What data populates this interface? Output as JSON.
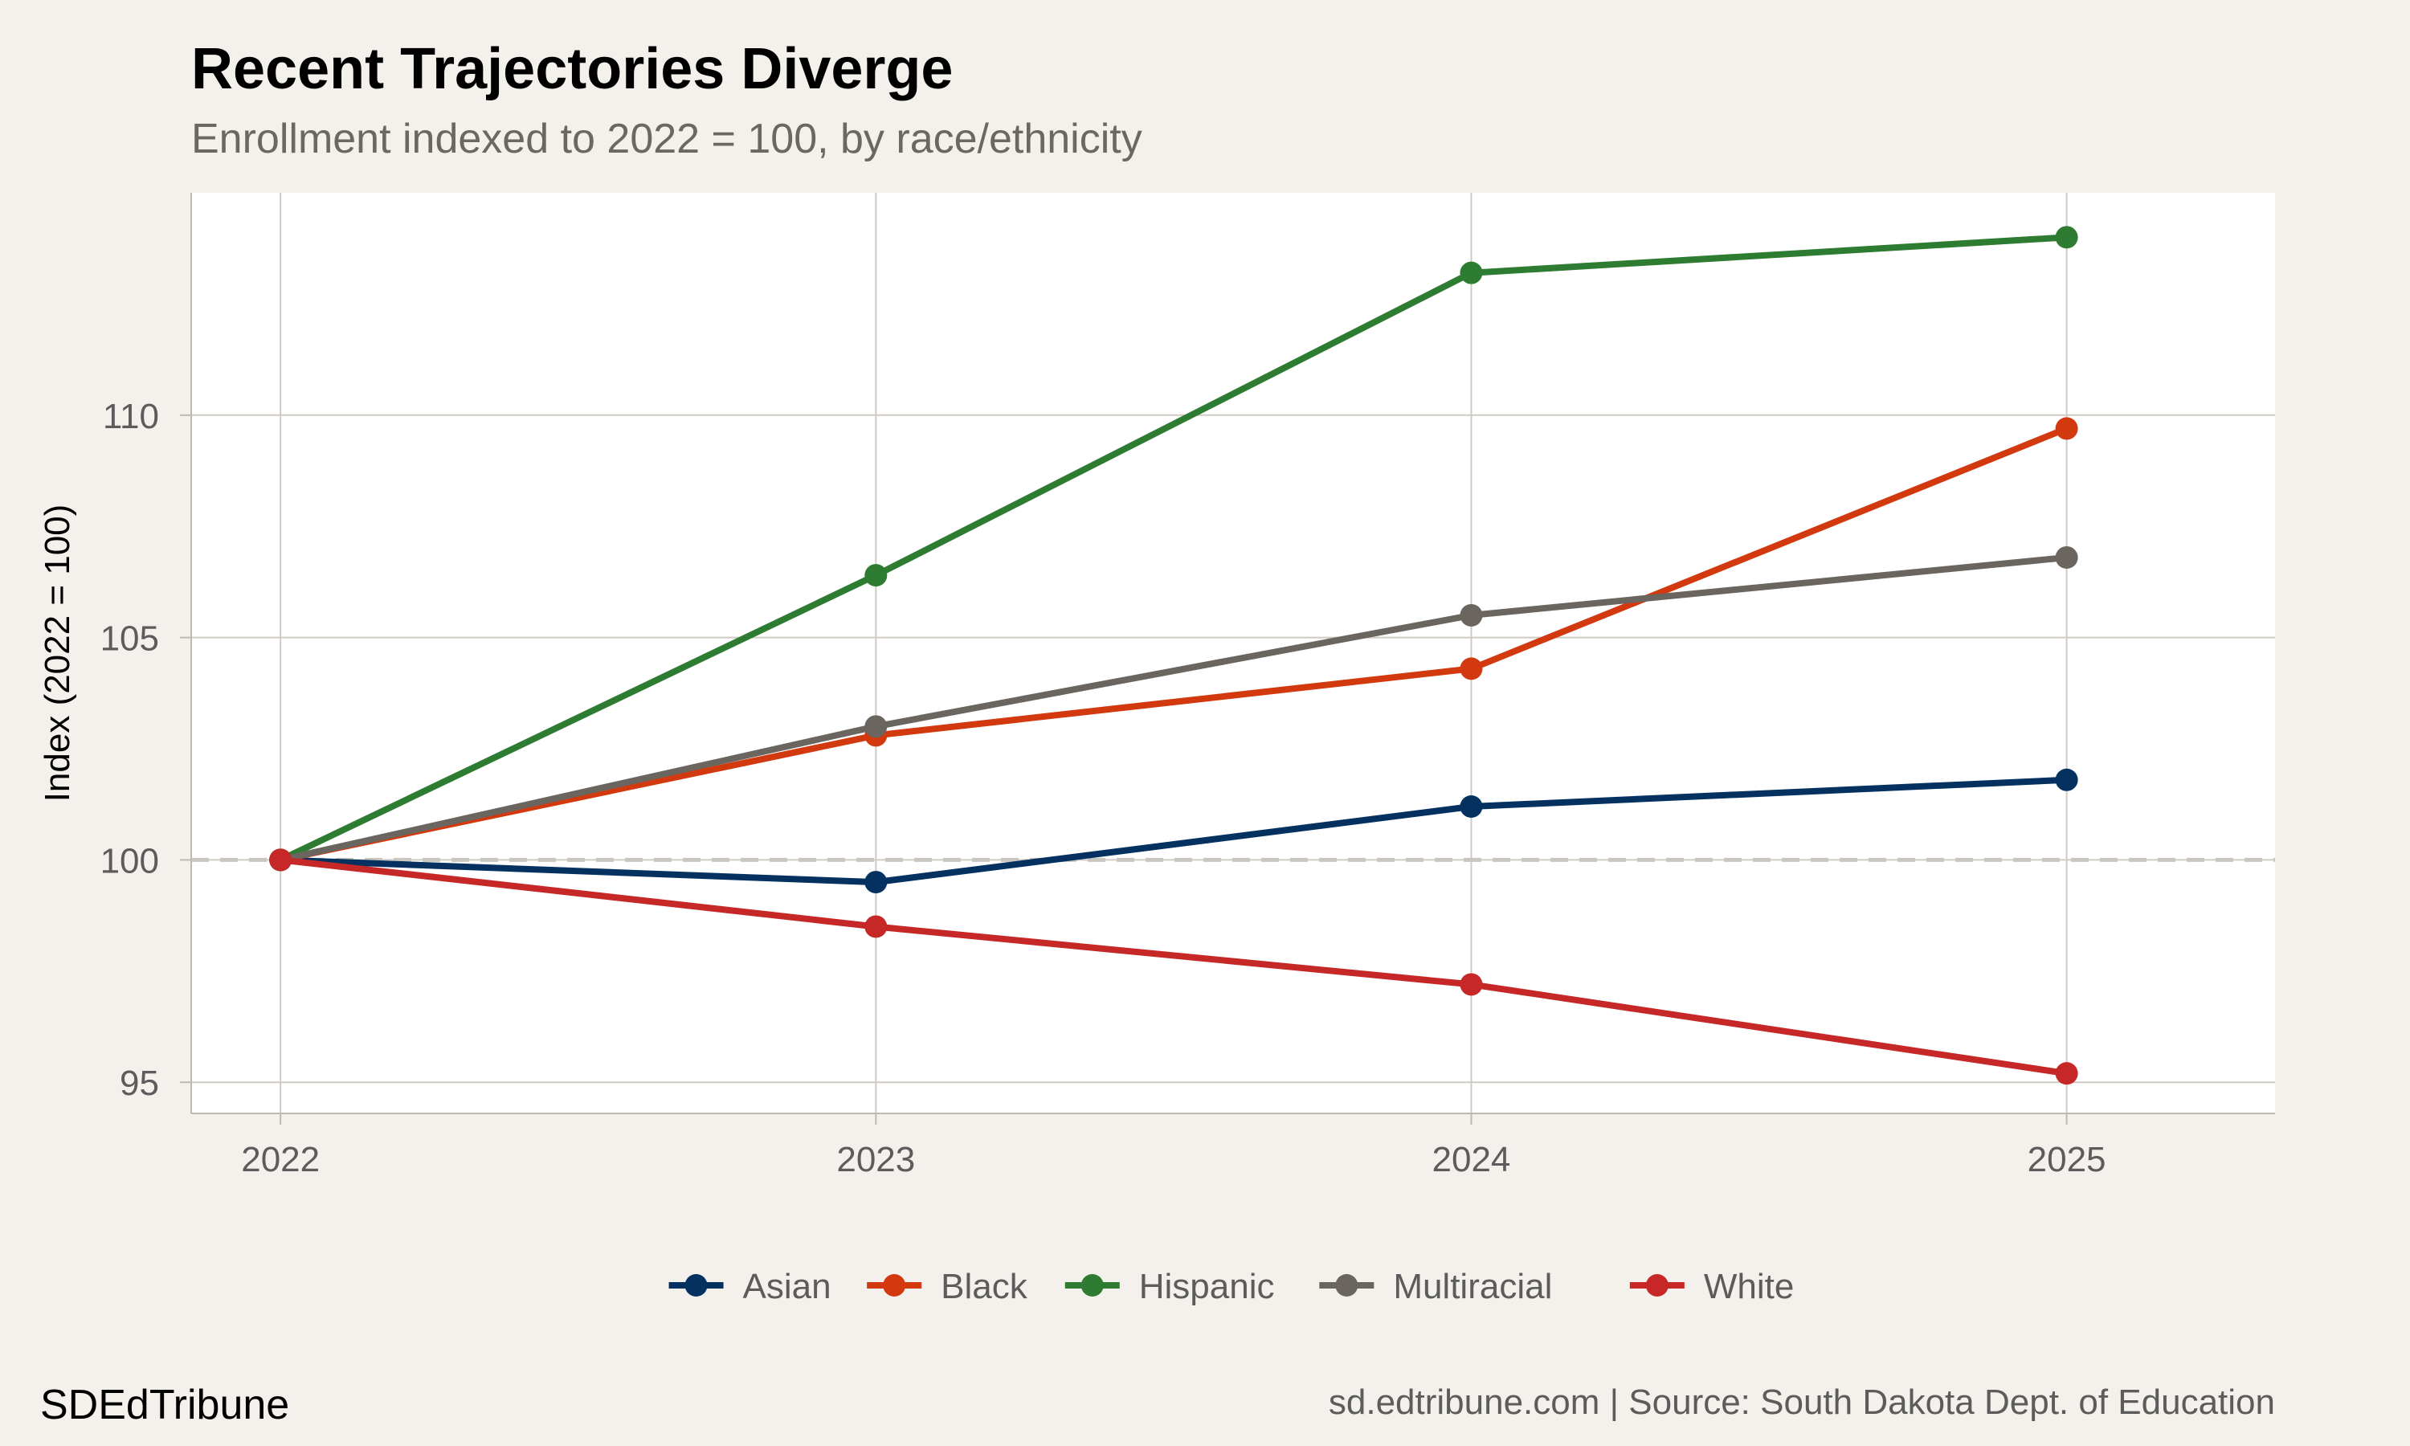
{
  "title": "Recent Trajectories Diverge",
  "subtitle": "Enrollment indexed to 2022 = 100, by race/ethnicity",
  "brand": "SDEdTribune",
  "caption": "sd.edtribune.com | Source: South Dakota Dept. of Education",
  "chart_data": {
    "type": "line",
    "title": "Recent Trajectories Diverge",
    "subtitle": "Enrollment indexed to 2022 = 100, by race/ethnicity",
    "xlabel": "",
    "ylabel": "Index (2022 = 100)",
    "x": [
      "2022",
      "2023",
      "2024",
      "2025"
    ],
    "xlim": [
      2021.85,
      2025.35
    ],
    "ylim": [
      94.3,
      115.0
    ],
    "yticks": [
      95,
      100,
      105,
      110
    ],
    "reference_line": 100,
    "grid": true,
    "legend_position": "bottom",
    "series": [
      {
        "name": "Asian",
        "color": "#04315f",
        "values": [
          100,
          99.5,
          101.2,
          101.8
        ]
      },
      {
        "name": "Black",
        "color": "#d3390f",
        "values": [
          100,
          102.8,
          104.3,
          109.7
        ]
      },
      {
        "name": "Hispanic",
        "color": "#2e7b32",
        "values": [
          100,
          106.4,
          113.2,
          114.0
        ]
      },
      {
        "name": "Multiracial",
        "color": "#6b6560",
        "values": [
          100,
          103.0,
          105.5,
          106.8
        ]
      },
      {
        "name": "White",
        "color": "#c62828",
        "values": [
          100,
          98.5,
          97.2,
          95.2
        ]
      }
    ]
  }
}
